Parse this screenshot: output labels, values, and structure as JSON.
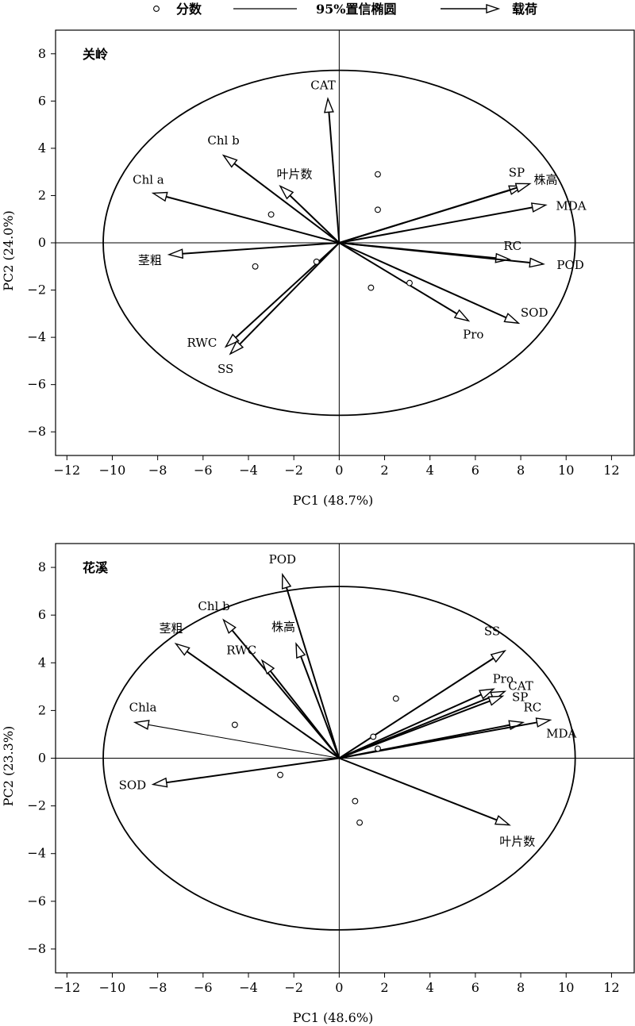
{
  "legend": {
    "scores": "分数",
    "ellipse": "95%置信椭圆",
    "loadings": "载荷"
  },
  "chart_data": [
    {
      "type": "scatter",
      "title": "关岭",
      "xlabel": "PC1 (48.7%)",
      "ylabel": "PC2 (24.0%)",
      "xlim": [
        -12.5,
        13
      ],
      "ylim": [
        -9,
        9
      ],
      "xticks": [
        -12,
        -10,
        -8,
        -6,
        -4,
        -2,
        0,
        2,
        4,
        6,
        8,
        10,
        12
      ],
      "yticks": [
        -8,
        -6,
        -4,
        -2,
        0,
        2,
        4,
        6,
        8
      ],
      "grid": false,
      "ellipse": {
        "center": [
          0,
          0
        ],
        "rx": 10.4,
        "ry": 7.3
      },
      "scores": [
        {
          "x": 1.7,
          "y": 2.9
        },
        {
          "x": 1.7,
          "y": 1.4
        },
        {
          "x": -3.0,
          "y": 1.2
        },
        {
          "x": -1.0,
          "y": -0.8
        },
        {
          "x": -3.7,
          "y": -1.0
        },
        {
          "x": 1.4,
          "y": -1.9
        },
        {
          "x": 3.1,
          "y": -1.7
        }
      ],
      "loadings": [
        {
          "name": "CAT",
          "x": -0.5,
          "y": 6.1
        },
        {
          "name": "Chl b",
          "x": -5.1,
          "y": 3.7
        },
        {
          "name": "叶片数",
          "x": -2.6,
          "y": 2.4
        },
        {
          "name": "Chl a",
          "x": -8.2,
          "y": 2.1
        },
        {
          "name": "茎粗",
          "x": -7.5,
          "y": -0.5
        },
        {
          "name": "RWC",
          "x": -5.0,
          "y": -4.4
        },
        {
          "name": "SS",
          "x": -4.8,
          "y": -4.7
        },
        {
          "name": "SP",
          "x": 8.1,
          "y": 2.4
        },
        {
          "name": "株高",
          "x": 8.4,
          "y": 2.5
        },
        {
          "name": "MDA",
          "x": 9.1,
          "y": 1.6
        },
        {
          "name": "RC",
          "x": 7.5,
          "y": -0.7
        },
        {
          "name": "POD",
          "x": 9.0,
          "y": -0.9
        },
        {
          "name": "SOD",
          "x": 7.9,
          "y": -3.4
        },
        {
          "name": "Pro",
          "x": 5.7,
          "y": -3.3
        }
      ]
    },
    {
      "type": "scatter",
      "title": "花溪",
      "xlabel": "PC1 (48.6%)",
      "ylabel": "PC2 (23.3%)",
      "xlim": [
        -12.5,
        13
      ],
      "ylim": [
        -9,
        9
      ],
      "xticks": [
        -12,
        -10,
        -8,
        -6,
        -4,
        -2,
        0,
        2,
        4,
        6,
        8,
        10,
        12
      ],
      "yticks": [
        -8,
        -6,
        -4,
        -2,
        0,
        2,
        4,
        6,
        8
      ],
      "grid": false,
      "ellipse": {
        "center": [
          0,
          0
        ],
        "rx": 10.4,
        "ry": 7.2
      },
      "scores": [
        {
          "x": 2.5,
          "y": 2.5
        },
        {
          "x": -4.6,
          "y": 1.4
        },
        {
          "x": 1.5,
          "y": 0.9
        },
        {
          "x": 1.7,
          "y": 0.4
        },
        {
          "x": -2.6,
          "y": -0.7
        },
        {
          "x": 0.7,
          "y": -1.8
        },
        {
          "x": 0.9,
          "y": -2.7
        }
      ],
      "loadings": [
        {
          "name": "POD",
          "x": -2.5,
          "y": 7.7
        },
        {
          "name": "Chl b",
          "x": -5.1,
          "y": 5.8
        },
        {
          "name": "茎粗",
          "x": -7.2,
          "y": 4.8
        },
        {
          "name": "株高",
          "x": -1.9,
          "y": 4.8
        },
        {
          "name": "RWC",
          "x": -3.4,
          "y": 4.1
        },
        {
          "name": "Chla",
          "x": -9.0,
          "y": 1.5,
          "thin": true
        },
        {
          "name": "SOD",
          "x": -8.2,
          "y": -1.1
        },
        {
          "name": "SS",
          "x": 7.3,
          "y": 4.5
        },
        {
          "name": "CAT",
          "x": 7.3,
          "y": 2.8
        },
        {
          "name": "Pro",
          "x": 6.8,
          "y": 2.9
        },
        {
          "name": "SP",
          "x": 7.2,
          "y": 2.6
        },
        {
          "name": "RC",
          "x": 8.1,
          "y": 1.5
        },
        {
          "name": "MDA",
          "x": 9.3,
          "y": 1.6
        },
        {
          "name": "叶片数",
          "x": 7.5,
          "y": -2.8
        }
      ]
    }
  ]
}
